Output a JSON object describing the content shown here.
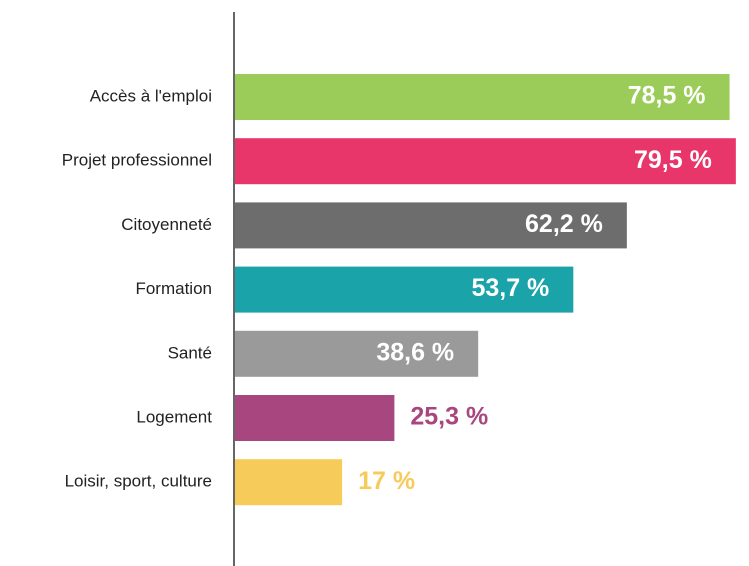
{
  "chart_data": {
    "type": "bar",
    "orientation": "horizontal",
    "categories": [
      "Accès à l'emploi",
      "Projet professionnel",
      "Citoyenneté",
      "Formation",
      "Santé",
      "Logement",
      "Loisir, sport, culture"
    ],
    "values": [
      78.5,
      79.5,
      62.2,
      53.7,
      38.6,
      25.3,
      17
    ],
    "value_labels": [
      "78,5 %",
      "79,5 %",
      "62,2 %",
      "53,7 %",
      "38,6 %",
      "25,3 %",
      "17 %"
    ],
    "colors": [
      "#9bcc5a",
      "#e8356a",
      "#6d6d6d",
      "#1aa3a9",
      "#9a9a9a",
      "#a8467f",
      "#f6cb5a"
    ]
  }
}
